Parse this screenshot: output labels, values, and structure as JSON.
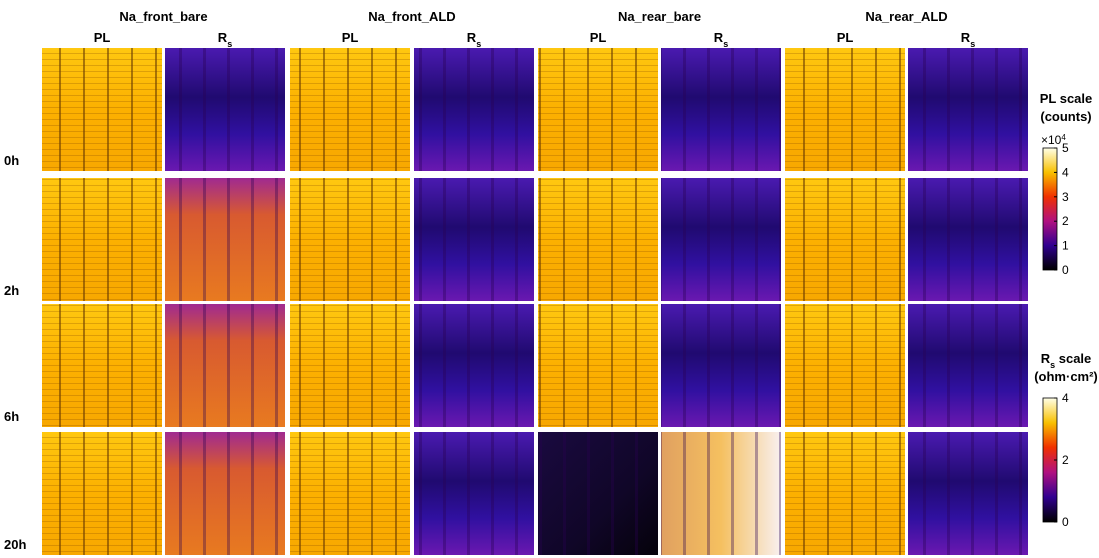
{
  "groups": [
    {
      "title": "Na_front_bare",
      "columns": [
        "PL",
        {
          "main": "R",
          "sub": "s"
        }
      ]
    },
    {
      "title": "Na_front_ALD",
      "columns": [
        "PL",
        {
          "main": "R",
          "sub": "s"
        }
      ]
    },
    {
      "title": "Na_rear_bare",
      "columns": [
        "PL",
        {
          "main": "R",
          "sub": "s"
        }
      ]
    },
    {
      "title": "Na_rear_ALD",
      "columns": [
        "PL",
        {
          "main": "R",
          "sub": "s"
        }
      ]
    }
  ],
  "rows": [
    "0h",
    "2h",
    "6h",
    "20h"
  ],
  "colorbars": [
    {
      "title": "PL scale",
      "unit": "(counts)",
      "multiplier": {
        "base": "×10",
        "exponent": "4"
      },
      "lim": [
        0,
        5
      ],
      "ticks": [
        0,
        1,
        2,
        3,
        4,
        5
      ]
    },
    {
      "title": {
        "main": "R",
        "sub": "s",
        "rest": " scale"
      },
      "unit": "(ohm·cm²)",
      "lim": [
        0,
        4
      ],
      "ticks": [
        0,
        2,
        4
      ]
    }
  ]
}
